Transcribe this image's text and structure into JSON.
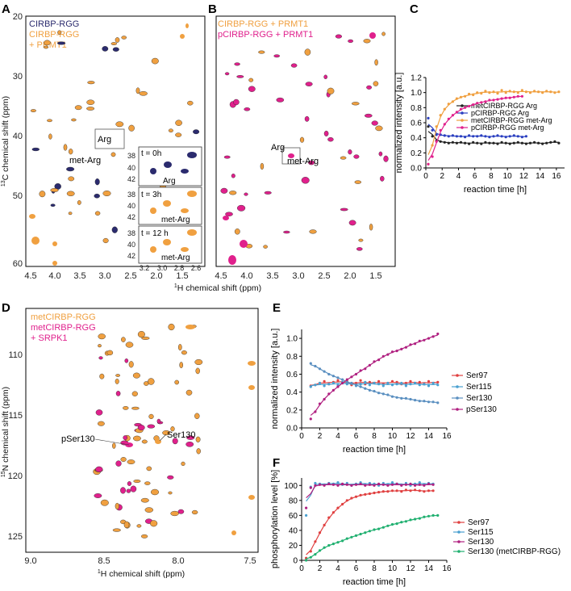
{
  "panels": {
    "A": "A",
    "B": "B",
    "C": "C",
    "D": "D",
    "E": "E",
    "F": "F"
  },
  "colors": {
    "navy": "#2b2b6e",
    "orange": "#f0a040",
    "magenta": "#e0208c",
    "black": "#222222",
    "red": "#e04040",
    "blue": "#4aa0d0",
    "green": "#20b070",
    "purple": "#b02080",
    "steel": "#5a8fc0"
  },
  "panelA": {
    "legend": [
      "CIRBP-RGG",
      "CIRBP-RGG",
      "+ PRMT1"
    ],
    "xticks": [
      "4.5",
      "4.0",
      "3.5",
      "3.0",
      "2.5",
      "2.0",
      "1.5"
    ],
    "yticks": [
      "20",
      "30",
      "40",
      "50",
      "60"
    ],
    "ylabel_sup": "13",
    "ylabel": "C chemical shift (ppm)",
    "arg": "Arg",
    "metarg": "met-Arg",
    "insets": [
      {
        "label": "t = 0h",
        "tag": "Arg"
      },
      {
        "label": "t = 3h",
        "tag": "met-Arg"
      },
      {
        "label": "t = 12 h",
        "tag": "met-Arg"
      }
    ],
    "inset_yticks": [
      "38",
      "40",
      "42"
    ],
    "inset_xticks": [
      "3.2",
      "3.0",
      "2.8",
      "2.6"
    ]
  },
  "panelB": {
    "legend": [
      "CIRBP-RGG + PRMT1",
      "pCIRBP-RGG + PRMT1"
    ],
    "xticks": [
      "4.5",
      "4.0",
      "3.5",
      "3.0",
      "2.5",
      "2.0",
      "1.5"
    ],
    "arg": "Arg",
    "metarg": "met-Arg"
  },
  "shared": {
    "xlabel_sup": "1",
    "xlabel": "H chemical shift (ppm)"
  },
  "panelD": {
    "legend": [
      "metCIRBP-RGG",
      "metCIRBP-RGG",
      "+ SRPK1"
    ],
    "xticks": [
      "9.0",
      "8.5",
      "8.0",
      "7.5"
    ],
    "yticks": [
      "110",
      "115",
      "120",
      "125"
    ],
    "ylabel_sup": "15",
    "ylabel": "N chemical shift (ppm)",
    "xlabel_sup": "1",
    "xlabel": "H chemical shift (ppm)",
    "pSer130": "pSer130",
    "Ser130": "Ser130"
  },
  "chart_data": [
    {
      "type": "line",
      "panel": "C",
      "xlabel": "reaction time [h]",
      "ylabel": "normalized intensity [a.u.]",
      "xlim": [
        0,
        17
      ],
      "ylim": [
        0,
        1.2
      ],
      "xticks": [
        "0",
        "2",
        "4",
        "6",
        "8",
        "10",
        "12",
        "14",
        "16"
      ],
      "yticks": [
        "0.0",
        "0.2",
        "0.4",
        "0.6",
        "0.8",
        "1.0",
        "1.2"
      ],
      "series": [
        {
          "name": "metCIRBP-RGG Arg",
          "color": "#222222",
          "x": [
            0.3,
            0.8,
            1.3,
            1.8,
            2.3,
            2.8,
            3.3,
            3.8,
            4.3,
            4.8,
            5.3,
            5.8,
            6.3,
            6.8,
            7.3,
            7.8,
            8.3,
            8.8,
            9.3,
            9.8,
            10.3,
            10.8,
            11.3,
            11.8,
            12.3,
            12.8,
            13.3,
            13.8,
            14.3,
            14.8,
            15.3,
            15.8,
            16.3
          ],
          "y": [
            0.55,
            0.42,
            0.36,
            0.35,
            0.34,
            0.33,
            0.34,
            0.33,
            0.34,
            0.33,
            0.32,
            0.34,
            0.33,
            0.32,
            0.34,
            0.33,
            0.33,
            0.32,
            0.34,
            0.33,
            0.32,
            0.33,
            0.34,
            0.33,
            0.32,
            0.33,
            0.34,
            0.33,
            0.32,
            0.33,
            0.34,
            0.35,
            0.33
          ]
        },
        {
          "name": "pCIRBP-RGG Arg",
          "color": "#2a3fc0",
          "x": [
            0.3,
            0.8,
            1.3,
            1.8,
            2.3,
            2.8,
            3.3,
            3.8,
            4.3,
            4.8,
            5.3,
            5.8,
            6.3,
            6.8,
            7.3,
            7.8,
            8.3,
            8.8,
            9.3,
            9.8,
            10.3,
            10.8,
            11.3,
            11.8,
            12.3
          ],
          "y": [
            0.66,
            0.5,
            0.44,
            0.44,
            0.43,
            0.42,
            0.43,
            0.42,
            0.42,
            0.41,
            0.43,
            0.42,
            0.42,
            0.43,
            0.42,
            0.41,
            0.42,
            0.43,
            0.42,
            0.41,
            0.42,
            0.43,
            0.42,
            0.41,
            0.42
          ]
        },
        {
          "name": "metCIRBP-RGG met-Arg",
          "color": "#f0a040",
          "x": [
            0.3,
            0.8,
            1.3,
            1.8,
            2.3,
            2.8,
            3.3,
            3.8,
            4.3,
            4.8,
            5.3,
            5.8,
            6.3,
            6.8,
            7.3,
            7.8,
            8.3,
            8.8,
            9.3,
            9.8,
            10.3,
            10.8,
            11.3,
            11.8,
            12.3,
            12.8,
            13.3,
            13.8,
            14.3,
            14.8,
            15.3,
            15.8,
            16.3
          ],
          "y": [
            0.05,
            0.3,
            0.55,
            0.7,
            0.78,
            0.85,
            0.88,
            0.92,
            0.94,
            0.95,
            0.98,
            0.97,
            1.0,
            0.99,
            1.02,
            1.0,
            1.01,
            0.99,
            1.03,
            1.0,
            1.02,
            1.01,
            1.0,
            1.03,
            1.01,
            1.0,
            1.02,
            1.01,
            1.0,
            1.02,
            1.01,
            1.0,
            1.01
          ]
        },
        {
          "name": "pCIRBP-RGG met-Arg",
          "color": "#e0208c",
          "x": [
            0.3,
            0.8,
            1.3,
            1.8,
            2.3,
            2.8,
            3.3,
            3.8,
            4.3,
            4.8,
            5.3,
            5.8,
            6.3,
            6.8,
            7.3,
            7.8,
            8.3,
            8.8,
            9.3,
            9.8,
            10.3,
            10.8,
            11.3,
            11.8
          ],
          "y": [
            0.05,
            0.15,
            0.35,
            0.5,
            0.58,
            0.65,
            0.7,
            0.74,
            0.78,
            0.8,
            0.82,
            0.84,
            0.86,
            0.87,
            0.88,
            0.9,
            0.9,
            0.91,
            0.92,
            0.93,
            0.93,
            0.94,
            0.95,
            0.95
          ]
        }
      ]
    },
    {
      "type": "line",
      "panel": "E",
      "xlabel": "reaction time [h]",
      "ylabel": "normalized intensity [a.u.]",
      "xlim": [
        0,
        16
      ],
      "ylim": [
        0,
        1.1
      ],
      "xticks": [
        "0",
        "2",
        "4",
        "6",
        "8",
        "10",
        "12",
        "14",
        "16"
      ],
      "yticks": [
        "0.0",
        "0.2",
        "0.4",
        "0.6",
        "0.8",
        "1.0"
      ],
      "series": [
        {
          "name": "Ser97",
          "color": "#e04040",
          "x": [
            1,
            1.5,
            2,
            2.5,
            3,
            3.5,
            4,
            4.5,
            5,
            5.5,
            6,
            6.5,
            7,
            7.5,
            8,
            8.5,
            9,
            9.5,
            10,
            10.5,
            11,
            11.5,
            12,
            12.5,
            13,
            13.5,
            14,
            14.5,
            15
          ],
          "y": [
            0.47,
            0.48,
            0.5,
            0.52,
            0.49,
            0.51,
            0.53,
            0.5,
            0.52,
            0.48,
            0.5,
            0.53,
            0.49,
            0.51,
            0.5,
            0.52,
            0.49,
            0.5,
            0.52,
            0.51,
            0.49,
            0.5,
            0.52,
            0.5,
            0.51,
            0.49,
            0.52,
            0.5,
            0.51
          ]
        },
        {
          "name": "Ser115",
          "color": "#4aa0d0",
          "x": [
            1,
            1.5,
            2,
            2.5,
            3,
            3.5,
            4,
            4.5,
            5,
            5.5,
            6,
            6.5,
            7,
            7.5,
            8,
            8.5,
            9,
            9.5,
            10,
            10.5,
            11,
            11.5,
            12,
            12.5,
            13,
            13.5,
            14,
            14.5,
            15
          ],
          "y": [
            0.46,
            0.48,
            0.5,
            0.47,
            0.49,
            0.5,
            0.48,
            0.51,
            0.49,
            0.5,
            0.47,
            0.49,
            0.51,
            0.48,
            0.5,
            0.49,
            0.47,
            0.5,
            0.48,
            0.49,
            0.5,
            0.47,
            0.49,
            0.5,
            0.48,
            0.49,
            0.47,
            0.5,
            0.48
          ]
        },
        {
          "name": "Ser130",
          "color": "#5a8fc0",
          "x": [
            1,
            1.5,
            2,
            2.5,
            3,
            3.5,
            4,
            4.5,
            5,
            5.5,
            6,
            6.5,
            7,
            7.5,
            8,
            8.5,
            9,
            9.5,
            10,
            10.5,
            11,
            11.5,
            12,
            12.5,
            13,
            13.5,
            14,
            14.5,
            15
          ],
          "y": [
            0.72,
            0.69,
            0.66,
            0.63,
            0.6,
            0.58,
            0.56,
            0.54,
            0.51,
            0.5,
            0.48,
            0.46,
            0.44,
            0.42,
            0.41,
            0.39,
            0.38,
            0.37,
            0.35,
            0.34,
            0.33,
            0.33,
            0.32,
            0.31,
            0.3,
            0.3,
            0.29,
            0.29,
            0.28
          ]
        },
        {
          "name": "pSer130",
          "color": "#b02080",
          "x": [
            1,
            1.5,
            2,
            2.5,
            3,
            3.5,
            4,
            4.5,
            5,
            5.5,
            6,
            6.5,
            7,
            7.5,
            8,
            8.5,
            9,
            9.5,
            10,
            10.5,
            11,
            11.5,
            12,
            12.5,
            13,
            13.5,
            14,
            14.5,
            15
          ],
          "y": [
            0.1,
            0.18,
            0.27,
            0.32,
            0.38,
            0.42,
            0.46,
            0.5,
            0.54,
            0.57,
            0.6,
            0.64,
            0.66,
            0.7,
            0.74,
            0.76,
            0.8,
            0.82,
            0.85,
            0.86,
            0.88,
            0.9,
            0.93,
            0.94,
            0.97,
            0.98,
            1.0,
            1.02,
            1.05
          ]
        }
      ]
    },
    {
      "type": "line",
      "panel": "F",
      "xlabel": "reaction time [h]",
      "ylabel": "phosphorylation level [%]",
      "xlim": [
        0,
        16
      ],
      "ylim": [
        0,
        110
      ],
      "xticks": [
        "0",
        "2",
        "4",
        "6",
        "8",
        "10",
        "12",
        "14",
        "16"
      ],
      "yticks": [
        "0",
        "20",
        "40",
        "60",
        "80",
        "100"
      ],
      "series": [
        {
          "name": "Ser97",
          "color": "#e04040",
          "x": [
            0.5,
            1,
            1.5,
            2,
            2.5,
            3,
            3.5,
            4,
            4.5,
            5,
            5.5,
            6,
            6.5,
            7,
            7.5,
            8,
            8.5,
            9,
            9.5,
            10,
            10.5,
            11,
            11.5,
            12,
            12.5,
            13,
            13.5,
            14,
            14.5
          ],
          "y": [
            3,
            12,
            25,
            37,
            47,
            57,
            64,
            70,
            75,
            80,
            83,
            85,
            87,
            88,
            89,
            90,
            91,
            92,
            92,
            93,
            93,
            92,
            94,
            93,
            94,
            93,
            92,
            93,
            93
          ]
        },
        {
          "name": "Ser115",
          "color": "#4aa0d0",
          "x": [
            0.5,
            1,
            1.5,
            2,
            2.5,
            3,
            3.5,
            4,
            4.5,
            5,
            5.5,
            6,
            6.5,
            7,
            7.5,
            8,
            8.5,
            9,
            9.5,
            10,
            10.5,
            11,
            11.5,
            12,
            12.5,
            13,
            13.5,
            14,
            14.5
          ],
          "y": [
            60,
            98,
            103,
            102,
            101,
            103,
            102,
            104,
            101,
            103,
            100,
            102,
            104,
            101,
            103,
            102,
            100,
            103,
            101,
            104,
            102,
            101,
            103,
            100,
            102,
            104,
            101,
            103,
            102
          ]
        },
        {
          "name": "Ser130",
          "color": "#b02080",
          "x": [
            0.5,
            1,
            1.5,
            2,
            2.5,
            3,
            3.5,
            4,
            4.5,
            5,
            5.5,
            6,
            6.5,
            7,
            7.5,
            8,
            8.5,
            9,
            9.5,
            10,
            10.5,
            11,
            11.5,
            12,
            12.5,
            13,
            13.5,
            14,
            14.5
          ],
          "y": [
            70,
            97,
            100,
            101,
            100,
            102,
            101,
            100,
            102,
            101,
            100,
            101,
            102,
            100,
            101,
            100,
            102,
            101,
            100,
            101,
            102,
            100,
            101,
            102,
            100,
            101,
            100,
            102,
            101
          ]
        },
        {
          "name": "Ser130 (metCIRBP-RGG)",
          "color": "#20b070",
          "x": [
            0.5,
            1,
            1.5,
            2,
            2.5,
            3,
            3.5,
            4,
            4.5,
            5,
            5.5,
            6,
            6.5,
            7,
            7.5,
            8,
            8.5,
            9,
            9.5,
            10,
            10.5,
            11,
            11.5,
            12,
            12.5,
            13,
            13.5,
            14,
            14.5,
            15
          ],
          "y": [
            0,
            4,
            8,
            13,
            17,
            20,
            22,
            24,
            26,
            29,
            31,
            33,
            35,
            37,
            39,
            41,
            42,
            44,
            46,
            48,
            49,
            51,
            52,
            54,
            55,
            56,
            58,
            59,
            60,
            60
          ]
        }
      ]
    }
  ]
}
